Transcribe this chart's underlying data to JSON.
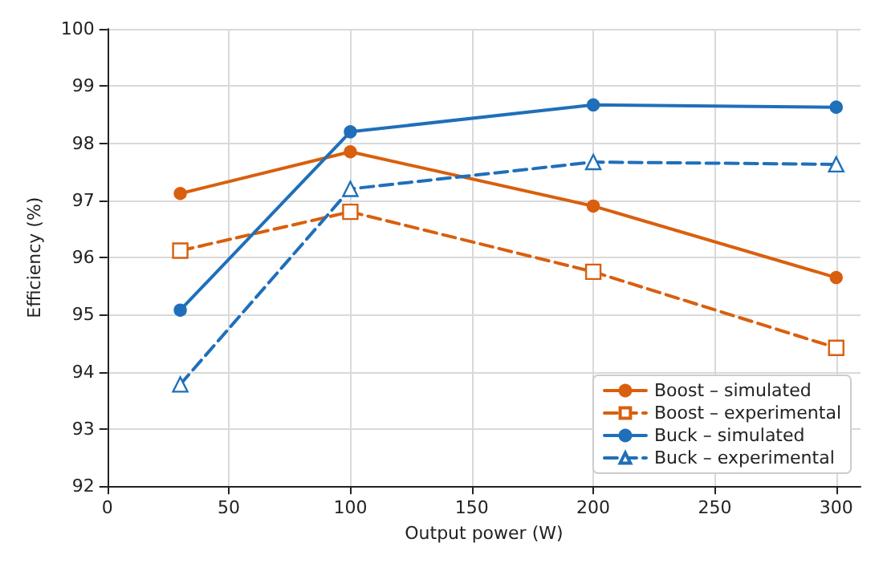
{
  "chart_data": {
    "type": "line",
    "xlabel": "Output power (W)",
    "ylabel": "Efficiency (%)",
    "x": [
      30,
      100,
      200,
      300
    ],
    "series": [
      {
        "name": "Boost – simulated",
        "color": "#d95f0e",
        "values": [
          97.12,
          97.85,
          96.9,
          95.65
        ],
        "marker": "circle",
        "line_style": "solid"
      },
      {
        "name": "Boost – experimental",
        "color": "#d95f0e",
        "values": [
          96.12,
          96.8,
          95.75,
          94.42
        ],
        "marker": "square",
        "line_style": "dashed"
      },
      {
        "name": "Buck – simulated",
        "color": "#1f6fba",
        "values": [
          95.08,
          98.2,
          98.67,
          98.63
        ],
        "marker": "circle",
        "line_style": "solid"
      },
      {
        "name": "Buck – experimental",
        "color": "#1f6fba",
        "values": [
          93.78,
          97.2,
          97.67,
          97.63
        ],
        "marker": "triangle",
        "line_style": "dashed"
      }
    ],
    "xlim": [
      0,
      310
    ],
    "xticks": [
      0,
      50,
      100,
      150,
      200,
      250,
      300
    ],
    "ylim": [
      92,
      100
    ],
    "yticks": [
      92,
      93,
      94,
      95,
      96,
      97,
      98,
      99,
      100
    ],
    "grid": true,
    "legend": "bottom right"
  }
}
